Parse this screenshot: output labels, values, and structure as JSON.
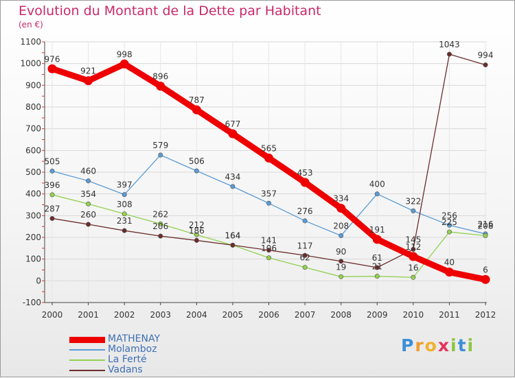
{
  "title": "Evolution du Montant de la Dette par Habitant",
  "subtitle": "(en €)",
  "brand": "Proxiti",
  "chart_data": {
    "type": "line",
    "title": "Evolution du Montant de la Dette par Habitant",
    "ylabel": "(en €)",
    "xlabel": "",
    "x": [
      "2000",
      "2001",
      "2002",
      "2003",
      "2004",
      "2005",
      "2006",
      "2007",
      "2008",
      "2009",
      "2010",
      "2011",
      "2012"
    ],
    "ylim": [
      -100,
      1100
    ],
    "yticks": [
      -100,
      0,
      100,
      200,
      300,
      400,
      500,
      600,
      700,
      800,
      900,
      1000,
      1100
    ],
    "grid": true,
    "legend": "bottom-left",
    "series": [
      {
        "name": "MATHENAY",
        "color": "#ee0000",
        "values": [
          976,
          921,
          998,
          896,
          787,
          677,
          565,
          453,
          334,
          191,
          112,
          40,
          6
        ]
      },
      {
        "name": "Molamboz",
        "color": "#5b9bd5",
        "values": [
          505,
          460,
          397,
          579,
          506,
          434,
          357,
          276,
          208,
          400,
          322,
          256,
          216
        ]
      },
      {
        "name": "La Ferté",
        "color": "#92d050",
        "values": [
          396,
          354,
          308,
          262,
          212,
          164,
          106,
          62,
          19,
          21,
          16,
          225,
          208
        ]
      },
      {
        "name": "Vadans",
        "color": "#6b2c2c",
        "values": [
          287,
          260,
          231,
          206,
          186,
          164,
          141,
          117,
          90,
          61,
          145,
          1043,
          994
        ]
      }
    ]
  }
}
